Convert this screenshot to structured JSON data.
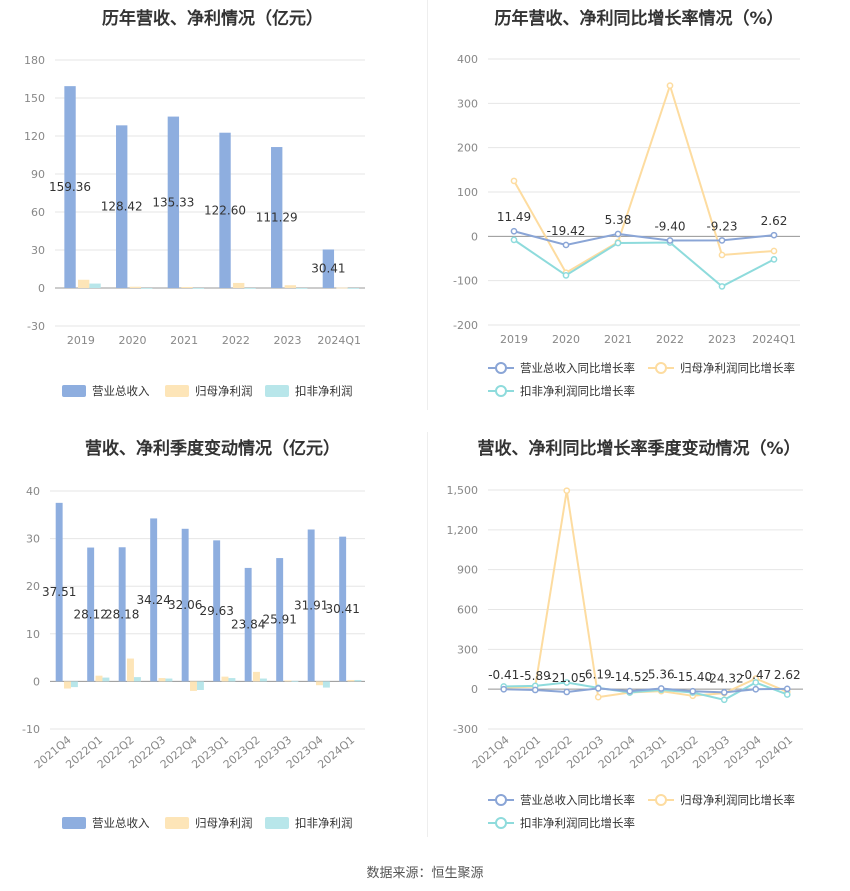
{
  "source_label": "数据来源：恒生聚源",
  "colors": {
    "revenue": "#8eaedf",
    "parent_np": "#fde5b8",
    "deducted_np": "#b8e6ea",
    "rev_line": "#8aa5d6",
    "np_line": "#fddca0",
    "ded_line": "#8edbdc",
    "grid": "#e6e6e6",
    "axis_text": "#888888"
  },
  "chart_data": [
    {
      "type": "bar",
      "title": "历年营收、净利情况（亿元）",
      "categories": [
        "2019",
        "2020",
        "2021",
        "2022",
        "2023",
        "2024Q1"
      ],
      "series": [
        {
          "name": "营业总收入",
          "values": [
            159.36,
            128.42,
            135.33,
            122.6,
            111.29,
            30.41
          ],
          "labels": [
            "159.36",
            "128.42",
            "135.33",
            "122.60",
            "111.29",
            "30.41"
          ]
        },
        {
          "name": "归母净利润",
          "values": [
            6.5,
            1.0,
            0.8,
            4.0,
            2.2,
            0.3
          ]
        },
        {
          "name": "扣非净利润",
          "values": [
            3.5,
            -0.5,
            -0.6,
            -0.5,
            -0.3,
            -0.4
          ]
        }
      ],
      "yticks": [
        -30,
        0,
        30,
        60,
        90,
        120,
        150,
        180
      ],
      "ylim": [
        -30,
        180
      ],
      "legend": "bottom"
    },
    {
      "type": "line",
      "title": "历年营收、净利同比增长率情况（%）",
      "categories": [
        "2019",
        "2020",
        "2021",
        "2022",
        "2023",
        "2024Q1"
      ],
      "series": [
        {
          "name": "营业总收入同比增长率",
          "values": [
            11.49,
            -19.42,
            5.38,
            -9.4,
            -9.23,
            2.62
          ],
          "labels": [
            "11.49",
            "-19.42",
            "5.38",
            "-9.40",
            "-9.23",
            "2.62"
          ]
        },
        {
          "name": "归母净利润同比增长率",
          "values": [
            125,
            -82,
            -13,
            340,
            -42,
            -33
          ]
        },
        {
          "name": "扣非净利润同比增长率",
          "values": [
            -8,
            -88,
            -15,
            -14,
            -113,
            -52
          ]
        }
      ],
      "yticks": [
        -200,
        -100,
        0,
        100,
        200,
        300,
        400
      ],
      "ylim": [
        -200,
        400
      ],
      "legend": "bottom"
    },
    {
      "type": "bar",
      "title": "营收、净利季度变动情况（亿元）",
      "categories": [
        "2021Q4",
        "2022Q1",
        "2022Q2",
        "2022Q3",
        "2022Q4",
        "2023Q1",
        "2023Q2",
        "2023Q3",
        "2023Q4",
        "2024Q1"
      ],
      "series": [
        {
          "name": "营业总收入",
          "values": [
            37.51,
            28.12,
            28.18,
            34.24,
            32.06,
            29.63,
            23.84,
            25.91,
            31.91,
            30.41
          ],
          "labels": [
            "37.51",
            "28.12",
            "28.18",
            "34.24",
            "32.06",
            "29.63",
            "23.84",
            "25.91",
            "31.91",
            "30.41"
          ]
        },
        {
          "name": "归母净利润",
          "values": [
            -1.5,
            1.2,
            4.8,
            0.7,
            -2.0,
            1.0,
            2.0,
            0.2,
            -0.8,
            0.3
          ]
        },
        {
          "name": "扣非净利润",
          "values": [
            -1.2,
            0.8,
            0.9,
            0.6,
            -1.8,
            0.7,
            0.6,
            0.1,
            -1.3,
            0.3
          ]
        }
      ],
      "yticks": [
        -10,
        0,
        10,
        20,
        30,
        40
      ],
      "ylim": [
        -10,
        40
      ],
      "legend": "bottom"
    },
    {
      "type": "line",
      "title": "营收、净利同比增长率季度变动情况（%）",
      "categories": [
        "2021Q4",
        "2022Q1",
        "2022Q2",
        "2022Q3",
        "2022Q4",
        "2023Q1",
        "2023Q2",
        "2023Q3",
        "2023Q4",
        "2024Q1"
      ],
      "series": [
        {
          "name": "营业总收入同比增长率",
          "values": [
            -0.41,
            -5.89,
            -21.05,
            6.19,
            -14.52,
            5.36,
            -15.4,
            -24.32,
            -0.47,
            2.62
          ],
          "labels": [
            "-0.41",
            "-5.89",
            "-21.05",
            "6.19",
            "-14.52",
            "5.36",
            "-15.40",
            "-24.32",
            "-0.47",
            "2.62"
          ]
        },
        {
          "name": "归母净利润同比增长率",
          "values": [
            10,
            20,
            1495,
            -60,
            -25,
            -15,
            -50,
            -30,
            80,
            -20
          ]
        },
        {
          "name": "扣非净利润同比增长率",
          "values": [
            20,
            25,
            50,
            10,
            -25,
            -5,
            -25,
            -80,
            50,
            -40
          ]
        }
      ],
      "yticks": [
        -300,
        0,
        300,
        600,
        900,
        1200,
        1500
      ],
      "ytick_labels": [
        "-300",
        "0",
        "300",
        "600",
        "900",
        "1,200",
        "1,500"
      ],
      "ylim": [
        -300,
        1500
      ],
      "legend": "bottom"
    }
  ]
}
